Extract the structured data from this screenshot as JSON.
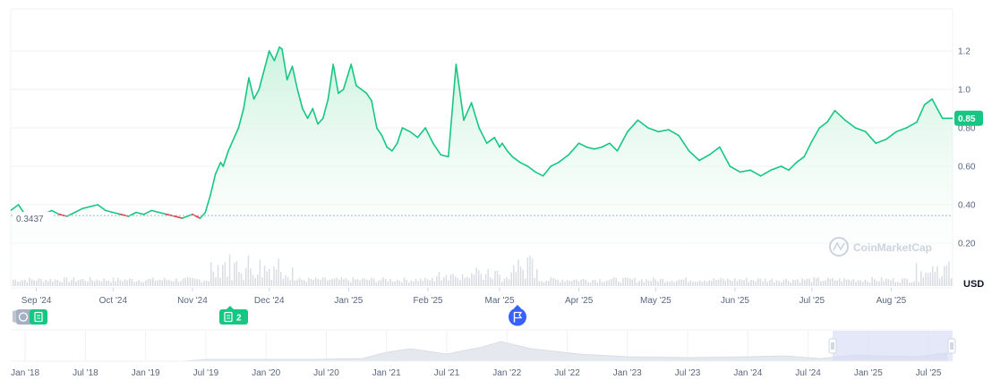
{
  "colors": {
    "up_line": "#16c784",
    "down_line": "#ea3943",
    "area_top": "#c8f2dc",
    "grid": "#eff2f5",
    "axis_text": "#58667e",
    "volume": "#d5d9e0",
    "navigator_fill": "#e5e8ee",
    "navigator_window": "#d7dcf5",
    "flag_badge": "#3861fb",
    "current_badge": "#16c784",
    "reference_badge": "#ffffff"
  },
  "watermark": "CoinMarketCap",
  "currency_label": "USD",
  "current_price_label": "0.85",
  "reference_price_label": "0.3437",
  "event_badges": [
    {
      "name": "history-note-badge",
      "icon": "document-icon",
      "count": ""
    },
    {
      "name": "news-badge",
      "icon": "document-icon",
      "count": "2"
    },
    {
      "name": "event-flag-badge",
      "icon": "flag-icon",
      "count": ""
    }
  ],
  "chart_data": {
    "type": "area",
    "title": "",
    "xlabel": "",
    "ylabel": "USD",
    "ylim": [
      0.0,
      1.4
    ],
    "grid": true,
    "reference_line": 0.3437,
    "current_value": 0.85,
    "y_ticks": [
      "0.20",
      "0.40",
      "0.60",
      "0.80",
      "1.0",
      "1.2"
    ],
    "x_ticks": [
      "Sep '24",
      "Oct '24",
      "Nov '24",
      "Dec '24",
      "Jan '25",
      "Feb '25",
      "Mar '25",
      "Apr '25",
      "May '25",
      "Jun '25",
      "Jul '25",
      "Aug '25"
    ],
    "series": [
      {
        "x": [
          "2024-08-22",
          "2024-08-25",
          "2024-08-28",
          "2024-09-01",
          "2024-09-04",
          "2024-09-07",
          "2024-09-10",
          "2024-09-13",
          "2024-09-16",
          "2024-09-19",
          "2024-09-22",
          "2024-09-25",
          "2024-09-28",
          "2024-10-01",
          "2024-10-04",
          "2024-10-07",
          "2024-10-10",
          "2024-10-13",
          "2024-10-16",
          "2024-10-19",
          "2024-10-22",
          "2024-10-25",
          "2024-10-28",
          "2024-11-01",
          "2024-11-04",
          "2024-11-06",
          "2024-11-08",
          "2024-11-10",
          "2024-11-12",
          "2024-11-13",
          "2024-11-15",
          "2024-11-17",
          "2024-11-19",
          "2024-11-21",
          "2024-11-23",
          "2024-11-25",
          "2024-11-27",
          "2024-11-29",
          "2024-12-01",
          "2024-12-03",
          "2024-12-05",
          "2024-12-06",
          "2024-12-08",
          "2024-12-10",
          "2024-12-12",
          "2024-12-14",
          "2024-12-16",
          "2024-12-18",
          "2024-12-20",
          "2024-12-22",
          "2024-12-24",
          "2024-12-26",
          "2024-12-28",
          "2024-12-30",
          "2025-01-02",
          "2025-01-04",
          "2025-01-06",
          "2025-01-08",
          "2025-01-10",
          "2025-01-12",
          "2025-01-14",
          "2025-01-16",
          "2025-01-18",
          "2025-01-20",
          "2025-01-22",
          "2025-01-25",
          "2025-01-28",
          "2025-01-31",
          "2025-02-03",
          "2025-02-06",
          "2025-02-09",
          "2025-02-12",
          "2025-02-15",
          "2025-02-18",
          "2025-02-21",
          "2025-02-24",
          "2025-02-27",
          "2025-03-01",
          "2025-03-02",
          "2025-03-03",
          "2025-03-04",
          "2025-03-06",
          "2025-03-09",
          "2025-03-12",
          "2025-03-15",
          "2025-03-18",
          "2025-03-21",
          "2025-03-24",
          "2025-03-28",
          "2025-04-01",
          "2025-04-04",
          "2025-04-07",
          "2025-04-10",
          "2025-04-13",
          "2025-04-16",
          "2025-04-20",
          "2025-04-24",
          "2025-04-28",
          "2025-05-02",
          "2025-05-06",
          "2025-05-10",
          "2025-05-12",
          "2025-05-14",
          "2025-05-18",
          "2025-05-22",
          "2025-05-26",
          "2025-05-30",
          "2025-06-03",
          "2025-06-07",
          "2025-06-11",
          "2025-06-15",
          "2025-06-19",
          "2025-06-22",
          "2025-06-25",
          "2025-06-28",
          "2025-07-01",
          "2025-07-04",
          "2025-07-07",
          "2025-07-10",
          "2025-07-14",
          "2025-07-18",
          "2025-07-22",
          "2025-07-26",
          "2025-07-30",
          "2025-08-03",
          "2025-08-07",
          "2025-08-11",
          "2025-08-14",
          "2025-08-17",
          "2025-08-19",
          "2025-08-21",
          "2025-08-23",
          "2025-08-25"
        ],
        "y": [
          0.37,
          0.4,
          0.34,
          0.33,
          0.35,
          0.37,
          0.35,
          0.34,
          0.36,
          0.38,
          0.39,
          0.4,
          0.37,
          0.36,
          0.35,
          0.34,
          0.36,
          0.35,
          0.37,
          0.36,
          0.35,
          0.34,
          0.33,
          0.35,
          0.33,
          0.36,
          0.45,
          0.56,
          0.62,
          0.6,
          0.68,
          0.74,
          0.8,
          0.9,
          1.06,
          0.95,
          1.0,
          1.1,
          1.2,
          1.15,
          1.22,
          1.21,
          1.05,
          1.12,
          1.0,
          0.9,
          0.85,
          0.9,
          0.82,
          0.85,
          0.95,
          1.13,
          0.98,
          1.0,
          1.13,
          1.02,
          1.0,
          0.98,
          0.94,
          0.8,
          0.76,
          0.7,
          0.68,
          0.72,
          0.8,
          0.78,
          0.75,
          0.8,
          0.72,
          0.66,
          0.65,
          1.13,
          0.84,
          0.93,
          0.8,
          0.72,
          0.75,
          0.7,
          0.72,
          0.7,
          0.68,
          0.65,
          0.62,
          0.6,
          0.57,
          0.55,
          0.6,
          0.62,
          0.66,
          0.72,
          0.7,
          0.69,
          0.7,
          0.72,
          0.68,
          0.78,
          0.84,
          0.8,
          0.78,
          0.79,
          0.76,
          0.72,
          0.68,
          0.63,
          0.66,
          0.7,
          0.6,
          0.57,
          0.58,
          0.55,
          0.58,
          0.6,
          0.58,
          0.62,
          0.65,
          0.73,
          0.8,
          0.83,
          0.89,
          0.84,
          0.8,
          0.78,
          0.72,
          0.74,
          0.78,
          0.8,
          0.83,
          0.92,
          0.95,
          0.9,
          0.85,
          0.85,
          0.85
        ]
      }
    ],
    "navigator": {
      "x_ticks": [
        "Jan '18",
        "Jul '18",
        "Jan '19",
        "Jul '19",
        "Jan '20",
        "Jul '20",
        "Jan '21",
        "Jul '21",
        "Jan '22",
        "Jul '22",
        "Jan '23",
        "Jul '23",
        "Jan '24",
        "Jul '24",
        "Jan '25",
        "Jul '25"
      ]
    }
  }
}
